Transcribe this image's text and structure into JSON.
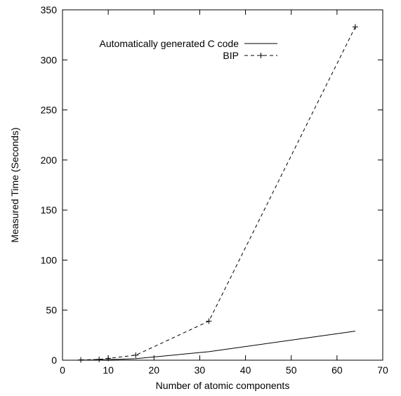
{
  "chart_data": {
    "type": "line",
    "title": "",
    "xlabel": "Number of atomic components",
    "ylabel": "Measured Time (Seconds)",
    "xlim": [
      0,
      70
    ],
    "ylim": [
      0,
      350
    ],
    "x_ticks": [
      0,
      10,
      20,
      30,
      40,
      50,
      60,
      70
    ],
    "y_ticks": [
      0,
      50,
      100,
      150,
      200,
      250,
      300,
      350
    ],
    "grid": false,
    "legend_position": "top-right",
    "series": [
      {
        "name": "Automatically generated C code",
        "style": "solid",
        "marker": "none",
        "color": "#000000",
        "x": [
          4,
          8,
          10,
          16,
          32,
          64
        ],
        "y": [
          0.1,
          0.3,
          0.5,
          1.5,
          8.5,
          29
        ]
      },
      {
        "name": "BIP",
        "style": "dashed",
        "marker": "plus",
        "color": "#000000",
        "x": [
          4,
          8,
          10,
          16,
          32,
          64
        ],
        "y": [
          0.3,
          0.8,
          1.8,
          5,
          39,
          333
        ]
      }
    ]
  }
}
